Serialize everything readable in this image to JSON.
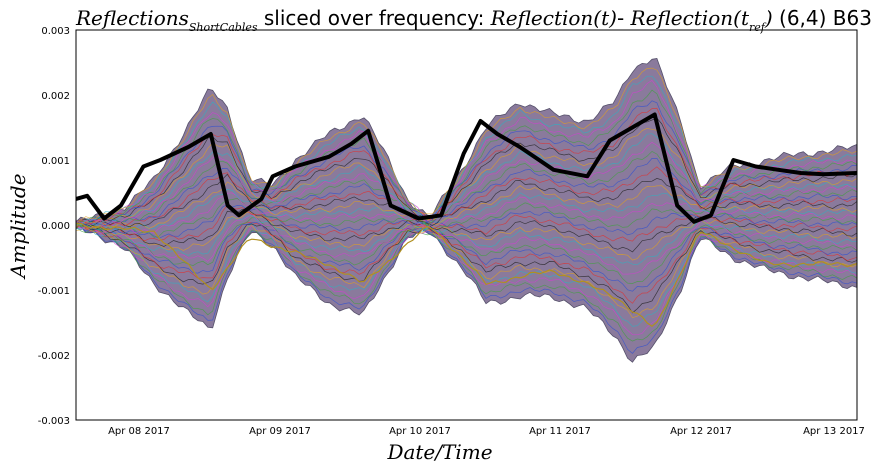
{
  "chart_data": {
    "type": "line",
    "title": {
      "math_name": "Reflections",
      "math_sub": "ShortCables",
      "mid": " sliced over frequency: ",
      "expr1": "Reflection(t)",
      "dash": "- ",
      "expr2": "Reflection(t",
      "expr2_sub": "ref",
      "expr2_close": ")",
      "suffix": " (6,4) B63"
    },
    "xlabel": "Date/Time",
    "ylabel": "Amplitude",
    "x_tick_labels": [
      "Apr 08 2017",
      "Apr 09 2017",
      "Apr 10 2017",
      "Apr 11 2017",
      "Apr 12 2017",
      "Apr 13 2017"
    ],
    "y_tick_labels": [
      "0.003",
      "0.002",
      "0.001",
      "0.000",
      "-0.001",
      "-0.002",
      "-0.003"
    ],
    "x_range_days": [
      "2017-04-07T09:00",
      "2017-04-13T04:00"
    ],
    "ylim": [
      -0.003,
      0.003
    ],
    "grid": false,
    "colors": {
      "band_fill": "#8a7a9c",
      "band_lines": [
        "#e03030",
        "#3050d0",
        "#40a040",
        "#d040d0",
        "#30b0c0",
        "#e0a020",
        "#202020"
      ],
      "highlight_line": "#b09020",
      "bold_line": "#000000"
    },
    "series": [
      {
        "x": [
          "2017-04-07T09:00",
          "2017-04-07T12:00",
          "2017-04-07T18:00",
          "2017-04-07T23:00",
          "2017-04-08T04:00",
          "2017-04-08T09:00",
          "2017-04-08T12:00",
          "2017-04-08T16:00",
          "2017-04-08T20:00",
          "2017-04-09T00:00",
          "2017-04-09T06:00",
          "2017-04-09T12:00",
          "2017-04-09T16:00",
          "2017-04-09T20:00",
          "2017-04-10T00:00",
          "2017-04-10T06:00",
          "2017-04-10T10:00",
          "2017-04-10T16:00",
          "2017-04-10T22:00",
          "2017-04-11T04:00",
          "2017-04-11T09:00",
          "2017-04-11T12:00",
          "2017-04-11T16:00",
          "2017-04-11T21:00",
          "2017-04-12T00:00",
          "2017-04-12T06:00",
          "2017-04-12T12:00",
          "2017-04-12T18:00",
          "2017-04-13T00:00",
          "2017-04-13T04:00"
        ],
        "upper": [
          5e-05,
          0.0001,
          0.0003,
          0.0007,
          0.0014,
          0.0021,
          0.0018,
          0.0007,
          0.0006,
          0.001,
          0.0014,
          0.0017,
          0.0011,
          0.0004,
          0.0001,
          0.0009,
          0.0015,
          0.0019,
          0.0017,
          0.0016,
          0.0019,
          0.0024,
          0.0026,
          0.0015,
          0.0006,
          0.0009,
          0.001,
          0.0011,
          0.00115,
          0.0012
        ],
        "lower": [
          -5e-05,
          -0.0001,
          -0.0004,
          -0.0009,
          -0.0013,
          -0.0016,
          -0.0008,
          -0.0001,
          -0.0003,
          -0.0008,
          -0.0012,
          -0.0014,
          -0.0008,
          -0.0002,
          -0.0001,
          -0.0007,
          -0.0012,
          -0.0011,
          -0.0011,
          -0.0013,
          -0.0017,
          -0.0021,
          -0.0019,
          -0.0009,
          -0.0002,
          -0.0005,
          -0.0007,
          -0.0008,
          -0.0009,
          -0.00095
        ]
      },
      {
        "x": [
          "2017-04-07T09:00",
          "2017-04-07T11:00",
          "2017-04-07T14:00",
          "2017-04-07T17:00",
          "2017-04-07T21:00",
          "2017-04-08T00:00",
          "2017-04-08T05:00",
          "2017-04-08T09:00",
          "2017-04-08T12:00",
          "2017-04-08T14:00",
          "2017-04-08T18:00",
          "2017-04-08T20:00",
          "2017-04-09T00:00",
          "2017-04-09T06:00",
          "2017-04-09T10:00",
          "2017-04-09T13:00",
          "2017-04-09T17:00",
          "2017-04-09T22:00",
          "2017-04-10T02:00",
          "2017-04-10T06:00",
          "2017-04-10T09:00",
          "2017-04-10T12:00",
          "2017-04-10T16:00",
          "2017-04-10T22:00",
          "2017-04-11T04:00",
          "2017-04-11T08:00",
          "2017-04-11T12:00",
          "2017-04-11T16:00",
          "2017-04-11T20:00",
          "2017-04-11T23:00",
          "2017-04-12T02:00",
          "2017-04-12T06:00",
          "2017-04-12T10:00",
          "2017-04-12T14:00",
          "2017-04-12T18:00",
          "2017-04-12T22:00",
          "2017-04-13T04:00"
        ],
        "values": [
          0.0004,
          0.00045,
          0.0001,
          0.0003,
          0.0009,
          0.001,
          0.0012,
          0.0014,
          0.0003,
          0.00015,
          0.0004,
          0.00075,
          0.0009,
          0.00105,
          0.00125,
          0.00145,
          0.0003,
          0.0001,
          0.00015,
          0.0011,
          0.0016,
          0.0014,
          0.0012,
          0.00085,
          0.00075,
          0.0013,
          0.0015,
          0.0017,
          0.0003,
          5e-05,
          0.00015,
          0.001,
          0.0009,
          0.00085,
          0.0008,
          0.00078,
          0.0008
        ]
      },
      {
        "x": [
          "2017-04-07T09:00",
          "2017-04-07T23:00",
          "2017-04-08T09:00",
          "2017-04-08T16:00",
          "2017-04-09T06:00",
          "2017-04-09T12:00",
          "2017-04-10T00:00",
          "2017-04-10T10:00",
          "2017-04-10T22:00",
          "2017-04-11T09:00",
          "2017-04-11T16:00",
          "2017-04-12T00:00",
          "2017-04-12T12:00",
          "2017-04-13T04:00"
        ],
        "values": [
          0.0,
          -0.0001,
          -0.001,
          -0.0002,
          -0.0006,
          -0.0009,
          0.0,
          -0.0009,
          -0.0007,
          -0.0011,
          -0.0016,
          -0.0001,
          -0.0006,
          -0.0006
        ]
      }
    ]
  }
}
